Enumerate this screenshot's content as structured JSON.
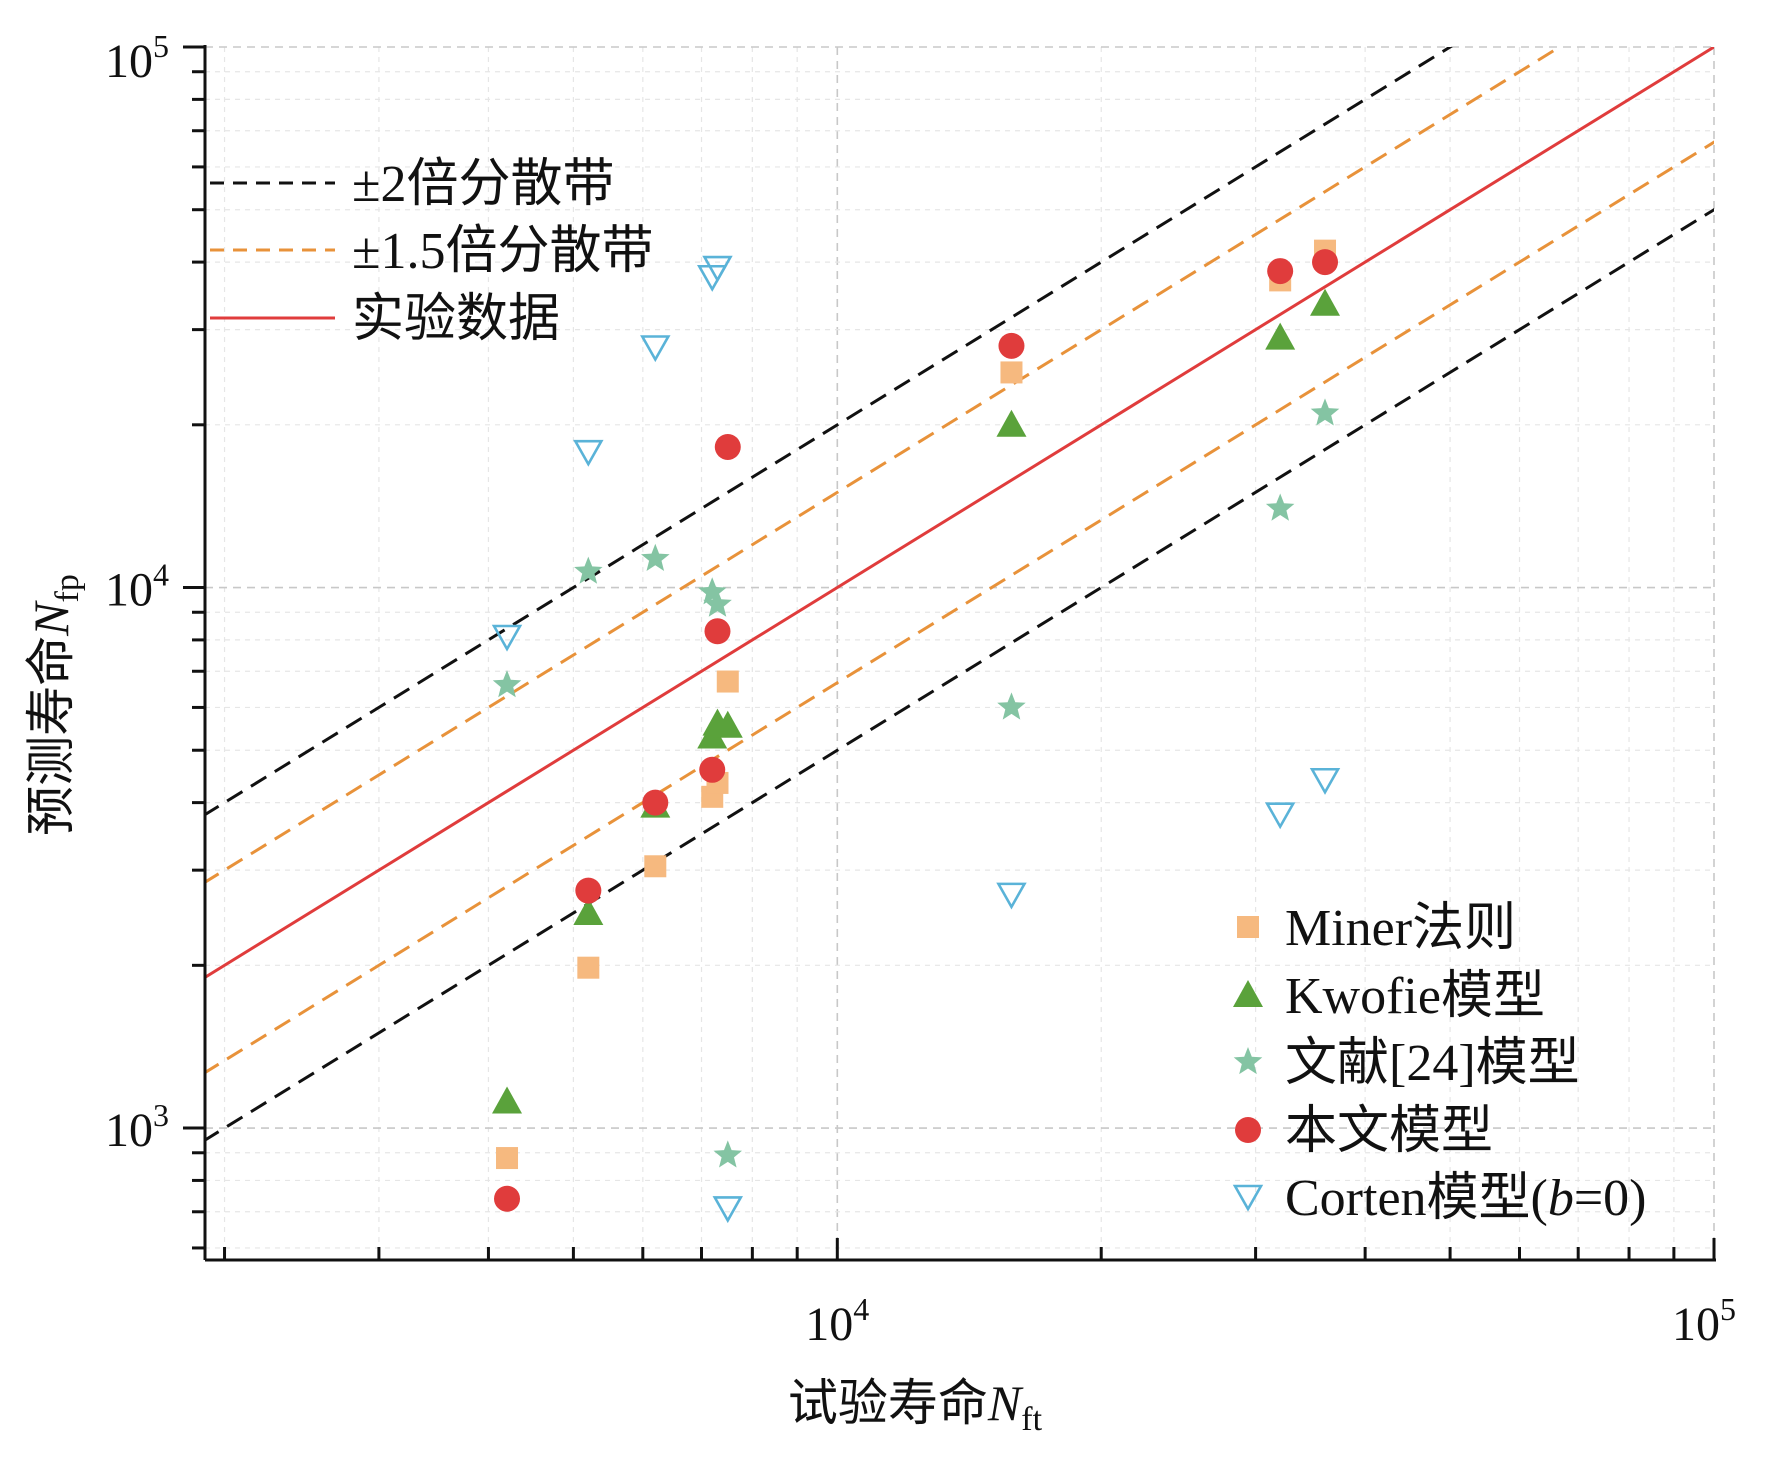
{
  "chart_data": {
    "type": "scatter",
    "x_axis": {
      "label_prefix": "试验寿命",
      "label_symbol": "N",
      "label_subscript": "ft",
      "scale": "log",
      "range": [
        1900,
        100000
      ],
      "tick_labels": [
        {
          "value": 10000,
          "base": "10",
          "exp": "4"
        },
        {
          "value": 100000,
          "base": "10",
          "exp": "5"
        }
      ]
    },
    "y_axis": {
      "label_prefix": "预测寿命",
      "label_symbol": "N",
      "label_subscript": "fp",
      "scale": "log",
      "range": [
        570,
        100000
      ],
      "tick_labels": [
        {
          "value": 1000,
          "base": "10",
          "exp": "3"
        },
        {
          "value": 10000,
          "base": "10",
          "exp": "4"
        },
        {
          "value": 100000,
          "base": "10",
          "exp": "5"
        }
      ]
    },
    "grid": true,
    "reference_lines": [
      {
        "name": "±2倍分散带",
        "factor": 2,
        "style": "dashed",
        "color": "#111111"
      },
      {
        "name": "±1.5倍分散带",
        "factor": 1.5,
        "style": "dashed",
        "color": "#e8923a"
      },
      {
        "name": "实验数据",
        "factor": 1,
        "style": "solid",
        "color": "#e03c3c"
      }
    ],
    "reference_legend_position": "top-left",
    "series_legend_position": "bottom-right",
    "series": [
      {
        "name": "Miner法则",
        "marker": "square",
        "color": "#f6b97f",
        "points": [
          [
            4200,
            880
          ],
          [
            5200,
            1980
          ],
          [
            6200,
            3050
          ],
          [
            7200,
            4100
          ],
          [
            7300,
            4350
          ],
          [
            7500,
            6700
          ],
          [
            15800,
            25000
          ],
          [
            32000,
            37000
          ],
          [
            36000,
            42000
          ]
        ]
      },
      {
        "name": "Kwofie模型",
        "marker": "triangle",
        "color": "#5aa23b",
        "points": [
          [
            4200,
            1120
          ],
          [
            5200,
            2500
          ],
          [
            6200,
            3950
          ],
          [
            7200,
            5300
          ],
          [
            7300,
            5600
          ],
          [
            7500,
            5550
          ],
          [
            15800,
            20000
          ],
          [
            32000,
            29000
          ],
          [
            36000,
            33500
          ]
        ]
      },
      {
        "name": "文献[24]模型",
        "marker": "star",
        "color": "#84c4a3",
        "points": [
          [
            4200,
            6600
          ],
          [
            5200,
            10700
          ],
          [
            6200,
            11300
          ],
          [
            7200,
            9800
          ],
          [
            7300,
            9300
          ],
          [
            7500,
            890
          ],
          [
            15800,
            6000
          ],
          [
            32000,
            14000
          ],
          [
            36000,
            21000
          ]
        ]
      },
      {
        "name": "本文模型",
        "marker": "circle",
        "color": "#e03c3c",
        "points": [
          [
            4200,
            740
          ],
          [
            5200,
            2750
          ],
          [
            6200,
            4000
          ],
          [
            7200,
            4600
          ],
          [
            7300,
            8300
          ],
          [
            7500,
            18200
          ],
          [
            15800,
            28000
          ],
          [
            32000,
            38500
          ],
          [
            36000,
            40000
          ]
        ]
      },
      {
        "name": "Corten模型(b=0)",
        "name_prefix": "Corten模型(",
        "name_italic": "b",
        "name_suffix": "=0)",
        "marker": "triangle-down",
        "color": "#5ab3d8",
        "points": [
          [
            4200,
            8100
          ],
          [
            5200,
            17800
          ],
          [
            6200,
            27800
          ],
          [
            7200,
            37500
          ],
          [
            7300,
            39000
          ],
          [
            7500,
            710
          ],
          [
            15800,
            2700
          ],
          [
            32000,
            3800
          ],
          [
            36000,
            4400
          ]
        ]
      }
    ]
  }
}
